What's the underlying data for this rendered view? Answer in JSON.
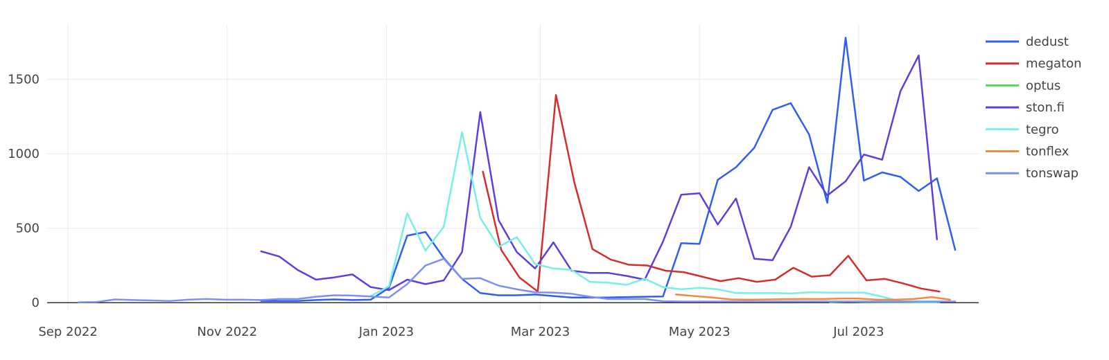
{
  "chart_data": {
    "type": "line",
    "xlabel": "",
    "ylabel": "",
    "x_axis_type": "date",
    "x_range": [
      "2022-08-24",
      "2023-08-16"
    ],
    "y_range": [
      -50,
      1870
    ],
    "grid": true,
    "legend_position": "right",
    "x_ticks": [
      {
        "date": "2022-09-01",
        "label": "Sep 2022"
      },
      {
        "date": "2022-11-01",
        "label": "Nov 2022"
      },
      {
        "date": "2023-01-01",
        "label": "Jan 2023"
      },
      {
        "date": "2023-03-01",
        "label": "Mar 2023"
      },
      {
        "date": "2023-05-01",
        "label": "May 2023"
      },
      {
        "date": "2023-07-01",
        "label": "Jul 2023"
      }
    ],
    "y_ticks": [
      {
        "value": 0,
        "label": "0"
      },
      {
        "value": 500,
        "label": "500"
      },
      {
        "value": 1000,
        "label": "1000"
      },
      {
        "value": 1500,
        "label": "1500"
      }
    ],
    "series": [
      {
        "name": "dedust",
        "color": "#2e5ff0",
        "points": [
          [
            "2022-11-14",
            12
          ],
          [
            "2022-11-21",
            12
          ],
          [
            "2022-11-28",
            12
          ],
          [
            "2022-12-05",
            18
          ],
          [
            "2022-12-12",
            22
          ],
          [
            "2022-12-19",
            18
          ],
          [
            "2022-12-26",
            20
          ],
          [
            "2023-01-02",
            100
          ],
          [
            "2023-01-09",
            450
          ],
          [
            "2023-01-16",
            475
          ],
          [
            "2023-01-23",
            300
          ],
          [
            "2023-01-30",
            160
          ],
          [
            "2023-02-06",
            65
          ],
          [
            "2023-02-13",
            50
          ],
          [
            "2023-02-20",
            50
          ],
          [
            "2023-02-27",
            55
          ],
          [
            "2023-03-06",
            45
          ],
          [
            "2023-03-13",
            35
          ],
          [
            "2023-03-20",
            35
          ],
          [
            "2023-03-27",
            35
          ],
          [
            "2023-04-03",
            38
          ],
          [
            "2023-04-10",
            40
          ],
          [
            "2023-04-17",
            42
          ],
          [
            "2023-04-24",
            400
          ],
          [
            "2023-05-01",
            395
          ],
          [
            "2023-05-08",
            825
          ],
          [
            "2023-05-15",
            910
          ],
          [
            "2023-05-22",
            1040
          ],
          [
            "2023-05-29",
            1295
          ],
          [
            "2023-06-05",
            1340
          ],
          [
            "2023-06-12",
            1130
          ],
          [
            "2023-06-19",
            670
          ],
          [
            "2023-06-26",
            1780
          ],
          [
            "2023-07-03",
            820
          ],
          [
            "2023-07-10",
            875
          ],
          [
            "2023-07-17",
            845
          ],
          [
            "2023-07-24",
            750
          ],
          [
            "2023-07-31",
            835
          ],
          [
            "2023-08-07",
            355
          ]
        ]
      },
      {
        "name": "megaton",
        "color": "#d62c2c",
        "points": [
          [
            "2023-02-07",
            880
          ],
          [
            "2023-02-14",
            355
          ],
          [
            "2023-02-21",
            170
          ],
          [
            "2023-02-28",
            75
          ],
          [
            "2023-03-07",
            1395
          ],
          [
            "2023-03-14",
            810
          ],
          [
            "2023-03-21",
            360
          ],
          [
            "2023-03-28",
            290
          ],
          [
            "2023-04-04",
            255
          ],
          [
            "2023-04-11",
            250
          ],
          [
            "2023-04-18",
            215
          ],
          [
            "2023-04-25",
            205
          ],
          [
            "2023-05-02",
            175
          ],
          [
            "2023-05-09",
            145
          ],
          [
            "2023-05-16",
            165
          ],
          [
            "2023-05-23",
            140
          ],
          [
            "2023-05-30",
            155
          ],
          [
            "2023-06-06",
            235
          ],
          [
            "2023-06-13",
            175
          ],
          [
            "2023-06-20",
            185
          ],
          [
            "2023-06-27",
            315
          ],
          [
            "2023-07-04",
            150
          ],
          [
            "2023-07-11",
            160
          ],
          [
            "2023-07-18",
            130
          ],
          [
            "2023-07-25",
            95
          ],
          [
            "2023-08-01",
            75
          ]
        ]
      },
      {
        "name": "optus",
        "color": "#5cd25c",
        "points": [
          [
            "2023-06-20",
            3
          ],
          [
            "2023-06-27",
            8
          ],
          [
            "2023-07-04",
            4
          ],
          [
            "2023-07-11",
            3
          ],
          [
            "2023-07-18",
            3
          ],
          [
            "2023-07-25",
            2
          ],
          [
            "2023-08-01",
            2
          ]
        ]
      },
      {
        "name": "ston.fi",
        "color": "#5b3fe0",
        "points": [
          [
            "2022-11-14",
            345
          ],
          [
            "2022-11-21",
            310
          ],
          [
            "2022-11-28",
            220
          ],
          [
            "2022-12-05",
            155
          ],
          [
            "2022-12-12",
            170
          ],
          [
            "2022-12-19",
            190
          ],
          [
            "2022-12-26",
            105
          ],
          [
            "2023-01-02",
            85
          ],
          [
            "2023-01-09",
            155
          ],
          [
            "2023-01-16",
            125
          ],
          [
            "2023-01-23",
            150
          ],
          [
            "2023-01-30",
            340
          ],
          [
            "2023-02-06",
            1280
          ],
          [
            "2023-02-13",
            555
          ],
          [
            "2023-02-20",
            340
          ],
          [
            "2023-02-27",
            230
          ],
          [
            "2023-03-06",
            405
          ],
          [
            "2023-03-13",
            215
          ],
          [
            "2023-03-20",
            200
          ],
          [
            "2023-03-27",
            200
          ],
          [
            "2023-04-03",
            180
          ],
          [
            "2023-04-10",
            155
          ],
          [
            "2023-04-17",
            410
          ],
          [
            "2023-04-24",
            725
          ],
          [
            "2023-05-01",
            735
          ],
          [
            "2023-05-08",
            525
          ],
          [
            "2023-05-15",
            700
          ],
          [
            "2023-05-22",
            295
          ],
          [
            "2023-05-29",
            285
          ],
          [
            "2023-06-05",
            510
          ],
          [
            "2023-06-12",
            910
          ],
          [
            "2023-06-19",
            720
          ],
          [
            "2023-06-26",
            815
          ],
          [
            "2023-07-03",
            995
          ],
          [
            "2023-07-10",
            960
          ],
          [
            "2023-07-17",
            1420
          ],
          [
            "2023-07-24",
            1660
          ],
          [
            "2023-07-31",
            425
          ]
        ]
      },
      {
        "name": "tegro",
        "color": "#74f0e4",
        "points": [
          [
            "2022-12-26",
            45
          ],
          [
            "2023-01-02",
            110
          ],
          [
            "2023-01-09",
            600
          ],
          [
            "2023-01-16",
            350
          ],
          [
            "2023-01-23",
            510
          ],
          [
            "2023-01-30",
            1145
          ],
          [
            "2023-02-06",
            570
          ],
          [
            "2023-02-13",
            375
          ],
          [
            "2023-02-20",
            440
          ],
          [
            "2023-02-27",
            260
          ],
          [
            "2023-03-06",
            230
          ],
          [
            "2023-03-13",
            220
          ],
          [
            "2023-03-20",
            140
          ],
          [
            "2023-03-27",
            135
          ],
          [
            "2023-04-03",
            120
          ],
          [
            "2023-04-10",
            160
          ],
          [
            "2023-04-17",
            105
          ],
          [
            "2023-04-24",
            90
          ],
          [
            "2023-05-01",
            100
          ],
          [
            "2023-05-08",
            90
          ],
          [
            "2023-05-15",
            65
          ],
          [
            "2023-05-22",
            65
          ],
          [
            "2023-05-29",
            65
          ],
          [
            "2023-06-05",
            62
          ],
          [
            "2023-06-12",
            70
          ],
          [
            "2023-06-19",
            68
          ],
          [
            "2023-06-26",
            68
          ],
          [
            "2023-07-03",
            68
          ],
          [
            "2023-07-10",
            40
          ],
          [
            "2023-07-17",
            10
          ],
          [
            "2023-07-24",
            5
          ],
          [
            "2023-07-31",
            5
          ]
        ]
      },
      {
        "name": "tonflex",
        "color": "#f4883e",
        "points": [
          [
            "2023-04-22",
            55
          ],
          [
            "2023-04-29",
            45
          ],
          [
            "2023-05-06",
            35
          ],
          [
            "2023-05-13",
            22
          ],
          [
            "2023-05-20",
            20
          ],
          [
            "2023-05-27",
            22
          ],
          [
            "2023-06-03",
            24
          ],
          [
            "2023-06-10",
            25
          ],
          [
            "2023-06-17",
            25
          ],
          [
            "2023-06-24",
            28
          ],
          [
            "2023-07-01",
            28
          ],
          [
            "2023-07-08",
            20
          ],
          [
            "2023-07-15",
            20
          ],
          [
            "2023-07-22",
            25
          ],
          [
            "2023-07-29",
            38
          ],
          [
            "2023-08-05",
            20
          ]
        ]
      },
      {
        "name": "tonswap",
        "color": "#7d8ef8",
        "points": [
          [
            "2022-09-05",
            3
          ],
          [
            "2022-09-12",
            5
          ],
          [
            "2022-09-19",
            22
          ],
          [
            "2022-09-26",
            18
          ],
          [
            "2022-10-03",
            15
          ],
          [
            "2022-10-10",
            12
          ],
          [
            "2022-10-17",
            20
          ],
          [
            "2022-10-24",
            25
          ],
          [
            "2022-10-31",
            20
          ],
          [
            "2022-11-07",
            20
          ],
          [
            "2022-11-14",
            18
          ],
          [
            "2022-11-21",
            25
          ],
          [
            "2022-11-28",
            25
          ],
          [
            "2022-12-05",
            40
          ],
          [
            "2022-12-12",
            50
          ],
          [
            "2022-12-19",
            48
          ],
          [
            "2022-12-26",
            42
          ],
          [
            "2023-01-02",
            35
          ],
          [
            "2023-01-09",
            125
          ],
          [
            "2023-01-16",
            250
          ],
          [
            "2023-01-23",
            295
          ],
          [
            "2023-01-30",
            160
          ],
          [
            "2023-02-06",
            165
          ],
          [
            "2023-02-13",
            115
          ],
          [
            "2023-02-20",
            90
          ],
          [
            "2023-02-27",
            70
          ],
          [
            "2023-03-06",
            68
          ],
          [
            "2023-03-13",
            60
          ],
          [
            "2023-03-20",
            40
          ],
          [
            "2023-03-27",
            25
          ],
          [
            "2023-04-03",
            25
          ],
          [
            "2023-04-10",
            25
          ],
          [
            "2023-04-17",
            10
          ],
          [
            "2023-04-24",
            8
          ],
          [
            "2023-05-01",
            8
          ],
          [
            "2023-05-08",
            8
          ],
          [
            "2023-05-15",
            8
          ],
          [
            "2023-05-22",
            8
          ],
          [
            "2023-05-29",
            8
          ],
          [
            "2023-06-05",
            8
          ],
          [
            "2023-06-12",
            8
          ],
          [
            "2023-06-19",
            8
          ],
          [
            "2023-06-26",
            8
          ],
          [
            "2023-07-03",
            8
          ],
          [
            "2023-07-10",
            8
          ],
          [
            "2023-07-17",
            8
          ],
          [
            "2023-07-24",
            8
          ],
          [
            "2023-07-31",
            8
          ],
          [
            "2023-08-07",
            8
          ]
        ]
      }
    ]
  }
}
